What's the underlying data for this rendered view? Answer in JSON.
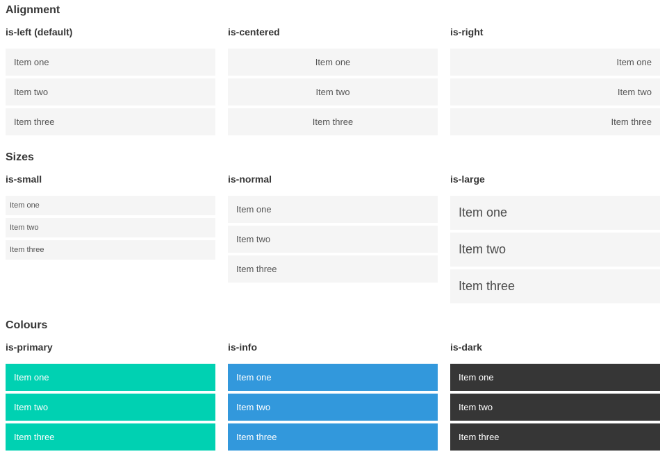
{
  "sections": [
    {
      "title": "Alignment",
      "groups": [
        {
          "label": "is-left (default)",
          "items": [
            "Item one",
            "Item two",
            "Item three"
          ]
        },
        {
          "label": "is-centered",
          "items": [
            "Item one",
            "Item two",
            "Item three"
          ]
        },
        {
          "label": "is-right",
          "items": [
            "Item one",
            "Item two",
            "Item three"
          ]
        }
      ]
    },
    {
      "title": "Sizes",
      "groups": [
        {
          "label": "is-small",
          "items": [
            "Item one",
            "Item two",
            "Item three"
          ]
        },
        {
          "label": "is-normal",
          "items": [
            "Item one",
            "Item two",
            "Item three"
          ]
        },
        {
          "label": "is-large",
          "items": [
            "Item one",
            "Item two",
            "Item three"
          ]
        }
      ]
    },
    {
      "title": "Colours",
      "groups": [
        {
          "label": "is-primary",
          "items": [
            "Item one",
            "Item two",
            "Item three"
          ]
        },
        {
          "label": "is-info",
          "items": [
            "Item one",
            "Item two",
            "Item three"
          ]
        },
        {
          "label": "is-dark",
          "items": [
            "Item one",
            "Item two",
            "Item three"
          ]
        }
      ]
    }
  ],
  "colors": {
    "primary": "#00d1b2",
    "info": "#3298dc",
    "dark": "#363636",
    "light": "#f5f5f5"
  }
}
